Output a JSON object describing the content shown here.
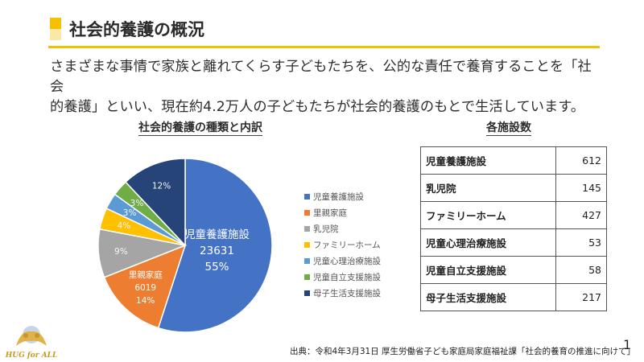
{
  "header": {
    "title": "社会的養護の概況"
  },
  "intro": {
    "line1": "さまざまな事情で家族と離れてくらす子どもたちを、公的な責任で養育することを「社会",
    "line2": "的養護」といい、現在約4.2万人の子どもたちが社会的養護のもとで生活しています。"
  },
  "chart_data": {
    "type": "pie",
    "title": "社会的養護の種類と内訳",
    "slices": [
      {
        "name": "児童養護施設",
        "value": 23631,
        "percent": 55,
        "color": "#4472c4",
        "labels": [
          "児童養護施設",
          "23631",
          "55%"
        ]
      },
      {
        "name": "里親家庭",
        "value": 6019,
        "percent": 14,
        "color": "#ed7d31",
        "labels": [
          "里親家庭",
          "6019",
          "14%"
        ]
      },
      {
        "name": "乳児院",
        "percent": 9,
        "color": "#a5a5a5",
        "labels": [
          "9%"
        ]
      },
      {
        "name": "ファミリーホーム",
        "percent": 4,
        "color": "#ffc000",
        "labels": [
          "4%"
        ]
      },
      {
        "name": "児童心理治療施設",
        "percent": 3,
        "color": "#5b9bd5",
        "labels": [
          "3%"
        ]
      },
      {
        "name": "児童自立支援施設",
        "percent": 3,
        "color": "#70ad47",
        "labels": [
          "3%"
        ]
      },
      {
        "name": "母子生活支援施設",
        "percent": 12,
        "color": "#264478",
        "labels": [
          "12%"
        ]
      }
    ],
    "legend_position": "right"
  },
  "facilities": {
    "title": "各施設数",
    "rows": [
      {
        "name": "児童養護施設",
        "count": "612"
      },
      {
        "name": "乳児院",
        "count": "145"
      },
      {
        "name": "ファミリーホーム",
        "count": "427"
      },
      {
        "name": "児童心理治療施設",
        "count": "53"
      },
      {
        "name": "児童自立支援施設",
        "count": "58"
      },
      {
        "name": "母子生活支援施設",
        "count": "217"
      }
    ]
  },
  "source": "出典：令和4年3月31日 厚生労働省子ども家庭局家庭福祉課「社会的養育の推進に向けて」",
  "page_number": "1",
  "logo": {
    "text": "HUG for ALL"
  }
}
